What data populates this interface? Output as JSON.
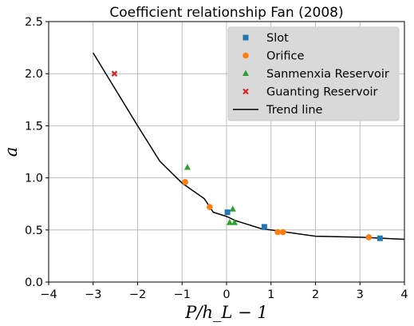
{
  "chart_data": {
    "type": "scatter",
    "title": "Coefficient relationship Fan (2008)",
    "xlabel": "P/h_L − 1",
    "ylabel": "a",
    "xlim": [
      -4,
      4
    ],
    "ylim": [
      0,
      2.5
    ],
    "xticks": [
      -4,
      -3,
      -2,
      -1,
      0,
      1,
      2,
      3,
      4
    ],
    "yticks": [
      0.0,
      0.5,
      1.0,
      1.5,
      2.0,
      2.5
    ],
    "xtick_labels": [
      "−4",
      "−3",
      "−2",
      "−1",
      "0",
      "1",
      "2",
      "3",
      "4"
    ],
    "ytick_labels": [
      "0.0",
      "0.5",
      "1.0",
      "1.5",
      "2.0",
      "2.5"
    ],
    "grid": true,
    "legend_position": "top-right",
    "series": [
      {
        "name": "Slot",
        "marker": "square",
        "color": "#1f77b4",
        "points": [
          [
            0.02,
            0.67
          ],
          [
            0.85,
            0.53
          ],
          [
            3.45,
            0.42
          ]
        ]
      },
      {
        "name": "Orifice",
        "marker": "circle",
        "color": "#ff7f0e",
        "points": [
          [
            -0.93,
            0.96
          ],
          [
            -0.38,
            0.72
          ],
          [
            1.15,
            0.48
          ],
          [
            1.27,
            0.48
          ],
          [
            3.2,
            0.43
          ]
        ]
      },
      {
        "name": "Sanmenxia Reservoir",
        "marker": "triangle",
        "color": "#2ca02c",
        "points": [
          [
            -0.88,
            1.1
          ],
          [
            0.07,
            0.57
          ],
          [
            0.14,
            0.7
          ],
          [
            0.18,
            0.57
          ]
        ]
      },
      {
        "name": "Guanting Reservoir",
        "marker": "x",
        "color": "#d62728",
        "points": [
          [
            -2.52,
            2.0
          ]
        ]
      },
      {
        "name": "Trend line",
        "marker": "line",
        "color": "#000000",
        "points": [
          [
            -3,
            2.2
          ],
          [
            -2.5,
            1.85
          ],
          [
            -2,
            1.5
          ],
          [
            -1.5,
            1.16
          ],
          [
            -1,
            0.95
          ],
          [
            -0.5,
            0.8
          ],
          [
            -0.3,
            0.67
          ],
          [
            0,
            0.63
          ],
          [
            0.2,
            0.59
          ],
          [
            0.5,
            0.55
          ],
          [
            0.8,
            0.51
          ],
          [
            1,
            0.5
          ],
          [
            1.5,
            0.47
          ],
          [
            2,
            0.44
          ],
          [
            3,
            0.43
          ],
          [
            4,
            0.41
          ]
        ]
      }
    ]
  }
}
